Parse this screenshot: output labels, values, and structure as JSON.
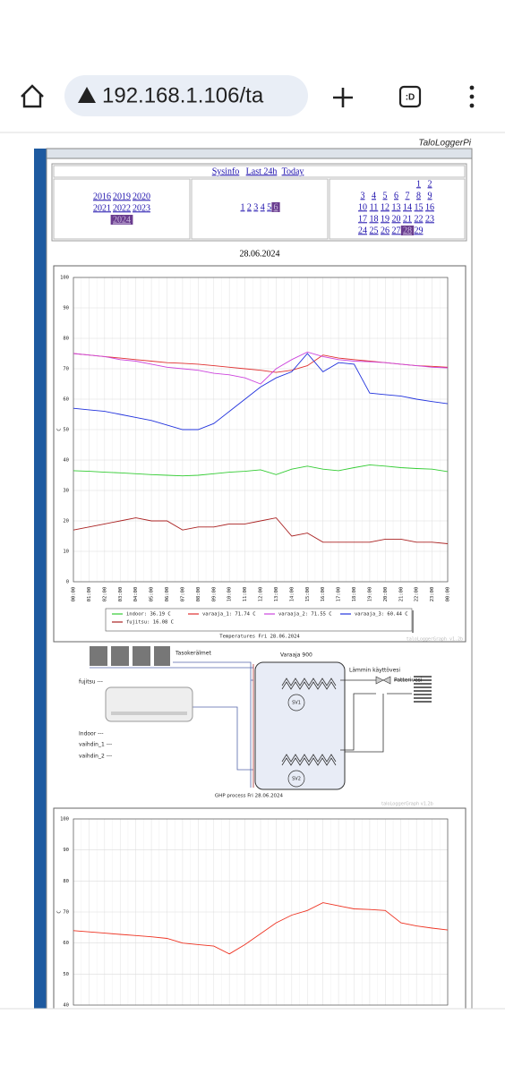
{
  "browser": {
    "url": "192.168.1.106/ta",
    "tab_icon": ":D"
  },
  "header": {
    "title": "TaloLoggerPi"
  },
  "nav": {
    "links": [
      "Sysinfo",
      "Last 24h",
      "Today"
    ],
    "years": [
      {
        "label": "2016"
      },
      {
        "label": "2019"
      },
      {
        "label": "2020"
      },
      {
        "label": "2021"
      },
      {
        "label": "2022"
      },
      {
        "label": "2023"
      },
      {
        "label": "2024",
        "selected": true
      }
    ],
    "months": [
      {
        "label": "1"
      },
      {
        "label": "2"
      },
      {
        "label": "3"
      },
      {
        "label": "4"
      },
      {
        "label": "5"
      },
      {
        "label": "6",
        "selected": true
      }
    ],
    "days": [
      {
        "label": "1"
      },
      {
        "label": "2"
      },
      {
        "label": "3"
      },
      {
        "label": "4"
      },
      {
        "label": "5"
      },
      {
        "label": "6"
      },
      {
        "label": "7"
      },
      {
        "label": "8"
      },
      {
        "label": "9"
      },
      {
        "label": "10"
      },
      {
        "label": "11"
      },
      {
        "label": "12"
      },
      {
        "label": "13"
      },
      {
        "label": "14"
      },
      {
        "label": "15"
      },
      {
        "label": "16"
      },
      {
        "label": "17"
      },
      {
        "label": "18"
      },
      {
        "label": "19"
      },
      {
        "label": "20"
      },
      {
        "label": "21"
      },
      {
        "label": "22"
      },
      {
        "label": "23"
      },
      {
        "label": "24"
      },
      {
        "label": "25"
      },
      {
        "label": "26"
      },
      {
        "label": "27"
      },
      {
        "label": "28",
        "selected": true
      },
      {
        "label": "29"
      }
    ]
  },
  "date": "28.06.2024",
  "chart_data": [
    {
      "type": "line",
      "title": "Temperatures Fri 28.06.2024",
      "y_label": "C",
      "watermark": "taloLoggerGraph v1.2b",
      "grid": true,
      "categories": [
        "00:00",
        "01:00",
        "02:00",
        "03:00",
        "04:00",
        "05:00",
        "06:00",
        "07:00",
        "08:00",
        "09:00",
        "10:00",
        "11:00",
        "12:00",
        "13:00",
        "14:00",
        "15:00",
        "16:00",
        "17:00",
        "18:00",
        "19:00",
        "20:00",
        "21:00",
        "22:00",
        "23:00",
        "00:00"
      ],
      "ylim": [
        0,
        100
      ],
      "yticks": [
        0,
        10,
        20,
        30,
        40,
        50,
        60,
        70,
        80,
        90,
        100
      ],
      "series": [
        {
          "name": "indoor: 36.19 C",
          "color": "#33cc33",
          "values": [
            36.5,
            36.3,
            36,
            35.8,
            35.5,
            35.2,
            35,
            34.8,
            35,
            35.5,
            36,
            36.3,
            36.8,
            35.2,
            37,
            38,
            37,
            36.5,
            37.5,
            38.4,
            38,
            37.5,
            37.2,
            37,
            36.2
          ]
        },
        {
          "name": "varaaja_1: 71.74 C",
          "color": "#e03030",
          "values": [
            75,
            74.5,
            74,
            73.5,
            73,
            72.5,
            72,
            71.8,
            71.5,
            71,
            70.5,
            70,
            69.5,
            68.8,
            69.5,
            71,
            74.5,
            73.5,
            73,
            72.5,
            72,
            71.5,
            71,
            70.8,
            70.5
          ]
        },
        {
          "name": "varaaja_2: 71.55 C",
          "color": "#cc44dd",
          "values": [
            75,
            74.5,
            74,
            73,
            72.5,
            71.5,
            70.5,
            70,
            69.5,
            68.5,
            68,
            67,
            65,
            70,
            73,
            75.5,
            74,
            73,
            72.5,
            72.3,
            72,
            71.5,
            71,
            70.5,
            70.3
          ]
        },
        {
          "name": "varaaja_3: 60.44 C",
          "color": "#2233dd",
          "values": [
            57,
            56.5,
            56,
            55,
            54,
            53,
            51.5,
            50,
            50,
            52,
            56,
            60,
            64,
            67,
            69,
            75,
            69,
            72,
            71.5,
            62,
            61.5,
            61,
            60,
            59.2,
            58.5
          ]
        },
        {
          "name": "fujitsu: 16.08 C",
          "color": "#aa2222",
          "values": [
            17,
            18,
            19,
            20,
            21,
            20,
            20,
            17,
            18,
            18,
            19,
            19,
            20,
            21,
            15,
            16,
            13,
            13,
            13,
            13,
            14,
            14,
            13,
            13,
            12.5
          ]
        }
      ]
    },
    {
      "type": "line",
      "y_label": "C",
      "grid": true,
      "ylim": [
        40,
        100
      ],
      "yticks": [
        40,
        50,
        60,
        70,
        80,
        90,
        100
      ],
      "series": [
        {
          "color": "#ee3322",
          "values": [
            64,
            63.6,
            63.2,
            62.8,
            62.4,
            62,
            61.5,
            60,
            59.5,
            59,
            56.5,
            59.5,
            63,
            66.5,
            69,
            70.5,
            73,
            72,
            71,
            70.8,
            70.5,
            66.5,
            65.5,
            64.8,
            64.2
          ]
        }
      ]
    }
  ],
  "diagram": {
    "collectors": "Tasokerälmet",
    "tank": "Varaaja 900",
    "hot_water": "Lämmin käyttövesi",
    "radiator": "Patterivesi",
    "fujitsu": "fujitsu ---",
    "indoor": "Indoor ---",
    "exchanger_1": "vaihdin_1 ---",
    "exchanger_2": "vaihdin_2 ---",
    "valve_1": "SV1",
    "valve_2": "SV2",
    "caption": "GHP process Fri 28.06.2024",
    "watermark": "taloLoggerGraph v1.2b"
  }
}
